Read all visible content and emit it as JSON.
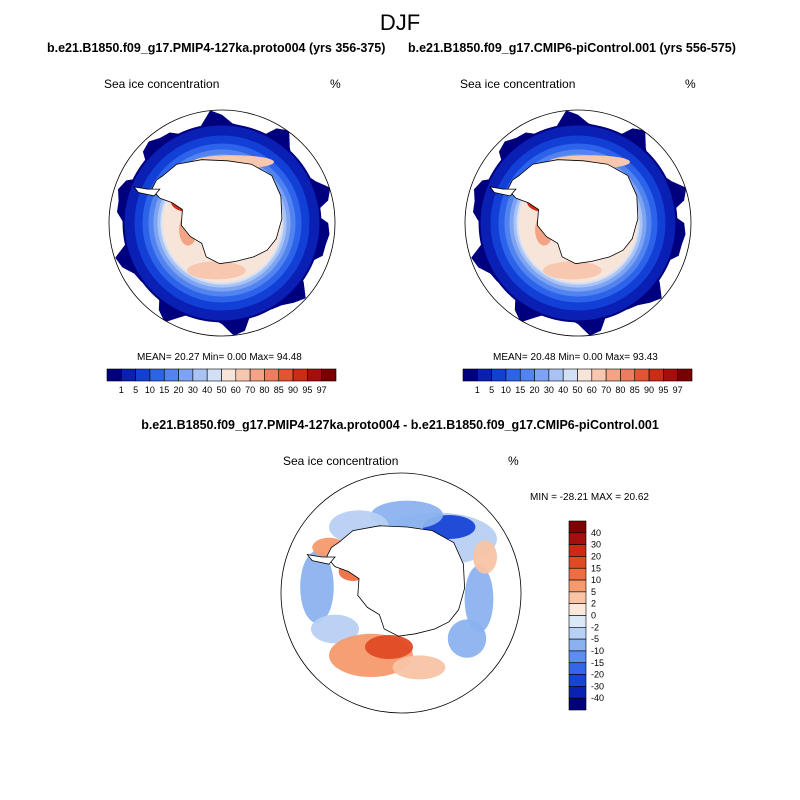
{
  "header": {
    "title": "DJF"
  },
  "panels": [
    {
      "id": "p1",
      "title": "b.e21.B1850.f09_g17.PMIP4-127ka.proto004 (yrs 356-375)",
      "variable": "Sea ice concentration",
      "units": "%",
      "stats": {
        "mean_label": "MEAN=",
        "mean": "20.27",
        "min_label": "Min=",
        "min": "0.00",
        "max_label": "Max=",
        "max": "94.48"
      }
    },
    {
      "id": "p2",
      "title": "b.e21.B1850.f09_g17.CMIP6-piControl.001 (yrs 556-575)",
      "variable": "Sea ice concentration",
      "units": "%",
      "stats": {
        "mean_label": "MEAN=",
        "mean": "20.48",
        "min_label": "Min=",
        "min": "0.00",
        "max_label": "Max=",
        "max": "93.43"
      }
    },
    {
      "id": "p3",
      "title": "b.e21.B1850.f09_g17.PMIP4-127ka.proto004 - b.e21.B1850.f09_g17.CMIP6-piControl.001",
      "variable": "Sea ice concentration",
      "units": "%",
      "stats": {
        "text": "MIN = -28.21 MAX =  20.62"
      }
    }
  ],
  "chart_data": [
    {
      "type": "heatmap",
      "projection": "south-polar-stereographic",
      "title": "b.e21.B1850.f09_g17.PMIP4-127ka.proto004 (yrs 356-375)",
      "variable": "Sea ice concentration",
      "units": "%",
      "mean": 20.27,
      "min": 0.0,
      "max": 94.48,
      "colorbar": {
        "orientation": "horizontal",
        "levels": [
          1,
          5,
          10,
          15,
          20,
          30,
          40,
          50,
          60,
          70,
          80,
          85,
          90,
          95,
          97
        ],
        "colors": [
          "#00007f",
          "#0a1fb4",
          "#123fd6",
          "#2d62ea",
          "#5284f0",
          "#7da3f2",
          "#a8c3f4",
          "#d2e0f7",
          "#f8e5da",
          "#f7c8af",
          "#f3a487",
          "#ee7c5e",
          "#e55334",
          "#cf2a16",
          "#a90d0b",
          "#7a0000"
        ]
      }
    },
    {
      "type": "heatmap",
      "projection": "south-polar-stereographic",
      "title": "b.e21.B1850.f09_g17.CMIP6-piControl.001 (yrs 556-575)",
      "variable": "Sea ice concentration",
      "units": "%",
      "mean": 20.48,
      "min": 0.0,
      "max": 93.43,
      "colorbar": {
        "orientation": "horizontal",
        "levels": [
          1,
          5,
          10,
          15,
          20,
          30,
          40,
          50,
          60,
          70,
          80,
          85,
          90,
          95,
          97
        ],
        "colors": [
          "#00007f",
          "#0a1fb4",
          "#123fd6",
          "#2d62ea",
          "#5284f0",
          "#7da3f2",
          "#a8c3f4",
          "#d2e0f7",
          "#f8e5da",
          "#f7c8af",
          "#f3a487",
          "#ee7c5e",
          "#e55334",
          "#cf2a16",
          "#a90d0b",
          "#7a0000"
        ]
      }
    },
    {
      "type": "heatmap",
      "projection": "south-polar-stereographic",
      "title": "b.e21.B1850.f09_g17.PMIP4-127ka.proto004 - b.e21.B1850.f09_g17.CMIP6-piControl.001",
      "variable": "Sea ice concentration",
      "units": "%",
      "min": -28.21,
      "max": 20.62,
      "colorbar": {
        "orientation": "vertical",
        "levels": [
          40,
          30,
          20,
          15,
          10,
          5,
          2,
          0,
          -2,
          -5,
          -10,
          -15,
          -20,
          -30,
          -40
        ],
        "colors": [
          "#7f0000",
          "#a50f0d",
          "#cc2a14",
          "#e04a24",
          "#ed6e42",
          "#f59a6e",
          "#f8c4a5",
          "#fbe8da",
          "#dbe8f7",
          "#b7d0f3",
          "#8bb2ef",
          "#5d8df0",
          "#3565ea",
          "#1744d6",
          "#0a22b2",
          "#00007f"
        ]
      }
    }
  ]
}
